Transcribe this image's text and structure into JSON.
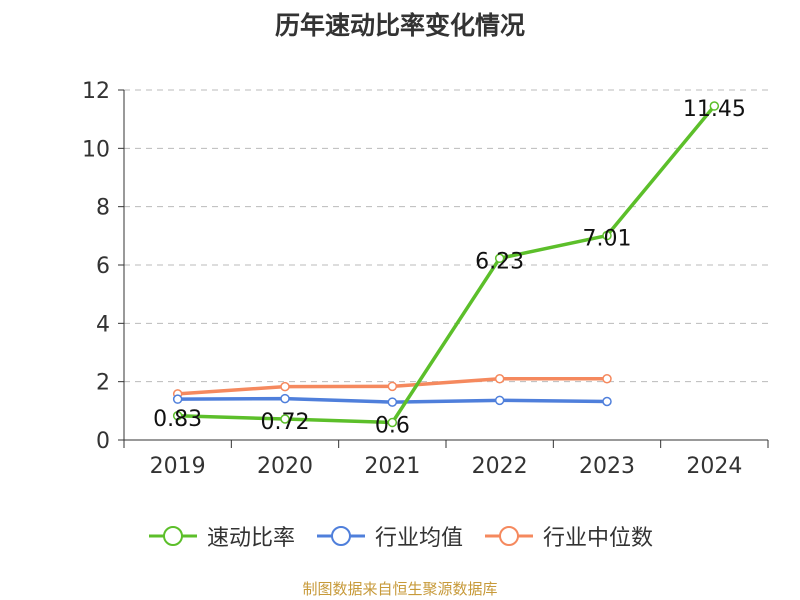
{
  "title": "历年速动比率变化情况",
  "source": "制图数据来自恒生聚源数据库",
  "colors": {
    "axis": "#333333",
    "grid": "#bbbbbb",
    "text": "#333333",
    "source": "#c79a3a"
  },
  "chart_data": {
    "type": "line",
    "title": "历年速动比率变化情况",
    "xlabel": "",
    "ylabel": "",
    "categories": [
      "2019",
      "2020",
      "2021",
      "2022",
      "2023",
      "2024"
    ],
    "ylim": [
      0,
      12
    ],
    "yticks": [
      0,
      2,
      4,
      6,
      8,
      10,
      12
    ],
    "grid": true,
    "legend_position": "bottom",
    "series": [
      {
        "name": "速动比率",
        "color": "#5cbf2a",
        "values": [
          0.83,
          0.72,
          0.6,
          6.23,
          7.01,
          11.45
        ],
        "labels": [
          "0.83",
          "0.72",
          "0.6",
          "6.23",
          "7.01",
          "11.45"
        ]
      },
      {
        "name": "行业均值",
        "color": "#4f7fdb",
        "values": [
          1.4,
          1.42,
          1.3,
          1.36,
          1.32,
          null
        ],
        "labels": null
      },
      {
        "name": "行业中位数",
        "color": "#f5895e",
        "values": [
          1.58,
          1.83,
          1.84,
          2.1,
          2.1,
          null
        ],
        "labels": null
      }
    ]
  }
}
